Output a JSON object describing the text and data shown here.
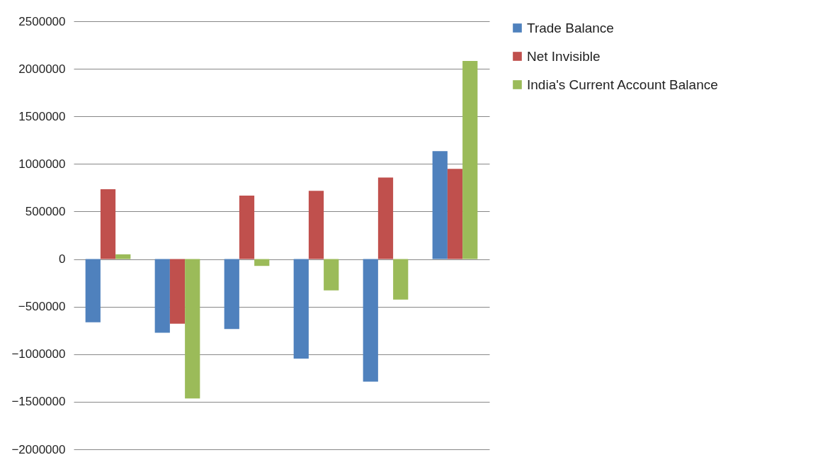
{
  "chart_data": {
    "type": "bar",
    "categories": [
      null,
      null,
      null,
      null,
      null,
      null
    ],
    "series": [
      {
        "name": "Trade Balance",
        "color": "#4f81bd",
        "values": [
          -665000,
          -775000,
          -735000,
          -1047000,
          -1288000,
          1134000
        ]
      },
      {
        "name": "Net Invisible",
        "color": "#c0504d",
        "values": [
          735000,
          -680000,
          667000,
          717000,
          858000,
          948000
        ]
      },
      {
        "name": "India's Current  Account Balance",
        "color": "#9bbb59",
        "values": [
          50000,
          -1465000,
          -72000,
          -330000,
          -427000,
          2082000
        ]
      }
    ],
    "ylim": [
      -2000000,
      2500000
    ],
    "yticks": [
      -2000000,
      -1500000,
      -1000000,
      -500000,
      0,
      500000,
      1000000,
      1500000,
      2000000,
      2500000
    ],
    "grid": "y",
    "legend": "right",
    "tick_labels": "y"
  }
}
